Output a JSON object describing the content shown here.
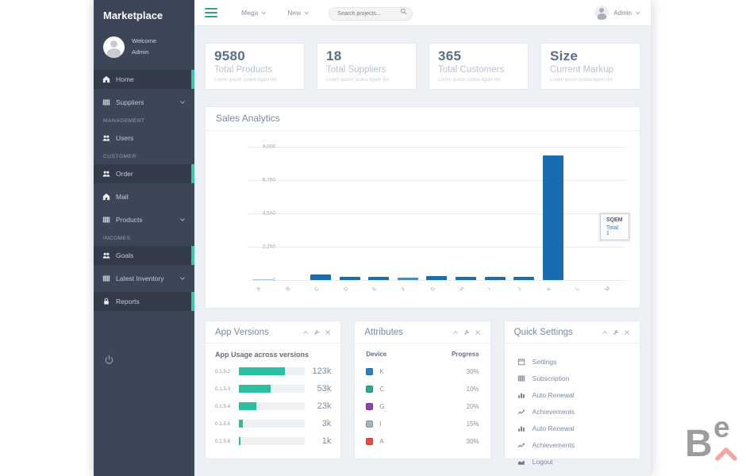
{
  "sidebar": {
    "brand": "Marketplace",
    "user": {
      "welcome": "Welcome",
      "name": "Admin"
    },
    "nav": [
      {
        "type": "item",
        "label": "Home",
        "icon": "home-icon",
        "active": true
      },
      {
        "type": "item",
        "label": "Suppliers",
        "icon": "table-icon",
        "chevron": true
      },
      {
        "type": "section",
        "label": "MANAGEMENT"
      },
      {
        "type": "item",
        "label": "Users",
        "icon": "users-icon"
      },
      {
        "type": "section",
        "label": "CUSTOMER"
      },
      {
        "type": "item",
        "label": "Order",
        "icon": "users-icon",
        "active": true
      },
      {
        "type": "item",
        "label": "Mail",
        "icon": "home-icon"
      },
      {
        "type": "item",
        "label": "Products",
        "icon": "table-icon",
        "chevron": true
      },
      {
        "type": "section",
        "label": "INCOMES"
      },
      {
        "type": "item",
        "label": "Goals",
        "icon": "users-icon",
        "active": true
      },
      {
        "type": "item",
        "label": "Latest Inventory",
        "icon": "table-icon",
        "chevron": true
      },
      {
        "type": "item",
        "label": "Reports",
        "icon": "lock-icon",
        "active": true
      }
    ]
  },
  "topbar": {
    "menu_items": [
      {
        "label": "Mega"
      },
      {
        "label": "New"
      }
    ],
    "search_placeholder": "Search projects...",
    "user_label": "Admin"
  },
  "stats": [
    {
      "value": "9580",
      "label": "Total Products",
      "desc": "Lorem ipsum psdea itgum rixt."
    },
    {
      "value": "18",
      "label": "Total Suppliers",
      "desc": "Lorem ipsum psdea itgum rixt."
    },
    {
      "value": "365",
      "label": "Total Customers",
      "desc": "Lorem ipsum psdea itgum rixt."
    },
    {
      "value": "Size",
      "label": "Current Markup",
      "desc": "Lorem ipsum psdea itgum rixt."
    }
  ],
  "sales": {
    "title": "Sales Analytics",
    "tooltip": {
      "title": "SQEM",
      "line": "Total: 1"
    }
  },
  "chart_data": [
    {
      "type": "bar",
      "title": "Sales Analytics",
      "categories": [
        "A",
        "B",
        "C",
        "D",
        "E",
        "F",
        "G",
        "H",
        "I",
        "J",
        "K",
        "L",
        "M"
      ],
      "values": [
        60,
        0,
        350,
        230,
        190,
        140,
        290,
        210,
        200,
        240,
        8400,
        0,
        0
      ],
      "colors": [
        "#a9c8e4",
        "#1a6cb0",
        "#1a6cb0",
        "#1a6cb0",
        "#1a6cb0",
        "#4a8cc0",
        "#1a6cb0",
        "#1a6cb0",
        "#1a6cb0",
        "#1a6cb0",
        "#1a6cb0",
        "#1a6cb0",
        "#1a6cb0"
      ],
      "ylim": [
        0,
        9000
      ],
      "yticks": [
        "9,000",
        "6,750",
        "4,500",
        "2,250",
        "0"
      ],
      "grid": true,
      "tooltip": {
        "label": "SQEM",
        "text": "Total: 1"
      }
    },
    {
      "type": "bar",
      "orientation": "horizontal",
      "title": "App Usage across versions",
      "categories": [
        "0.1.5.2",
        "0.1.5.3",
        "0.1.5.4",
        "0.1.5.5",
        "0.1.5.6"
      ],
      "values": [
        "123k",
        "53k",
        "23k",
        "3k",
        "1k"
      ],
      "fill_pct": [
        70,
        48,
        26,
        6,
        3
      ],
      "bar_color": "#2cbf9f"
    },
    {
      "type": "table",
      "title": "Attributes",
      "columns": [
        "Device",
        "Progress"
      ],
      "rows": [
        {
          "label": "K",
          "color": "#2d7fc1",
          "progress": "30%"
        },
        {
          "label": "C",
          "color": "#22b08f",
          "progress": "10%"
        },
        {
          "label": "G",
          "color": "#8e44ad",
          "progress": "20%"
        },
        {
          "label": "I",
          "color": "#a2b5bd",
          "progress": "15%"
        },
        {
          "label": "A",
          "color": "#e74c3c",
          "progress": "30%"
        }
      ]
    }
  ],
  "app_versions": {
    "title": "App Versions",
    "subtitle": "App Usage across versions"
  },
  "attributes": {
    "title": "Attributes",
    "col_device": "Device",
    "col_progress": "Progress"
  },
  "quick_settings": {
    "title": "Quick Settings",
    "items": [
      {
        "icon": "calendar-icon",
        "label": "Settings"
      },
      {
        "icon": "table-icon",
        "label": "Subscription"
      },
      {
        "icon": "bar-chart-icon",
        "label": "Auto Renewal"
      },
      {
        "icon": "line-chart-icon",
        "label": "Achievements"
      },
      {
        "icon": "bar-chart-icon",
        "label": "Auto Renewal"
      },
      {
        "icon": "line-chart-icon",
        "label": "Achievements"
      },
      {
        "icon": "area-chart-icon",
        "label": "Logout"
      }
    ]
  },
  "card_actions": [
    "chevron-up-icon",
    "wrench-icon",
    "close-icon"
  ],
  "colors": {
    "accent_teal": "#3ec3a6",
    "chart_blue": "#1a6cb0",
    "progress_green": "#2cbf9f",
    "sidebar_bg": "#3d4656",
    "content_bg": "#edf1f5",
    "logo_pink": "#f5a79f"
  },
  "be_logo": {
    "text_b": "B",
    "text_e": "e"
  }
}
